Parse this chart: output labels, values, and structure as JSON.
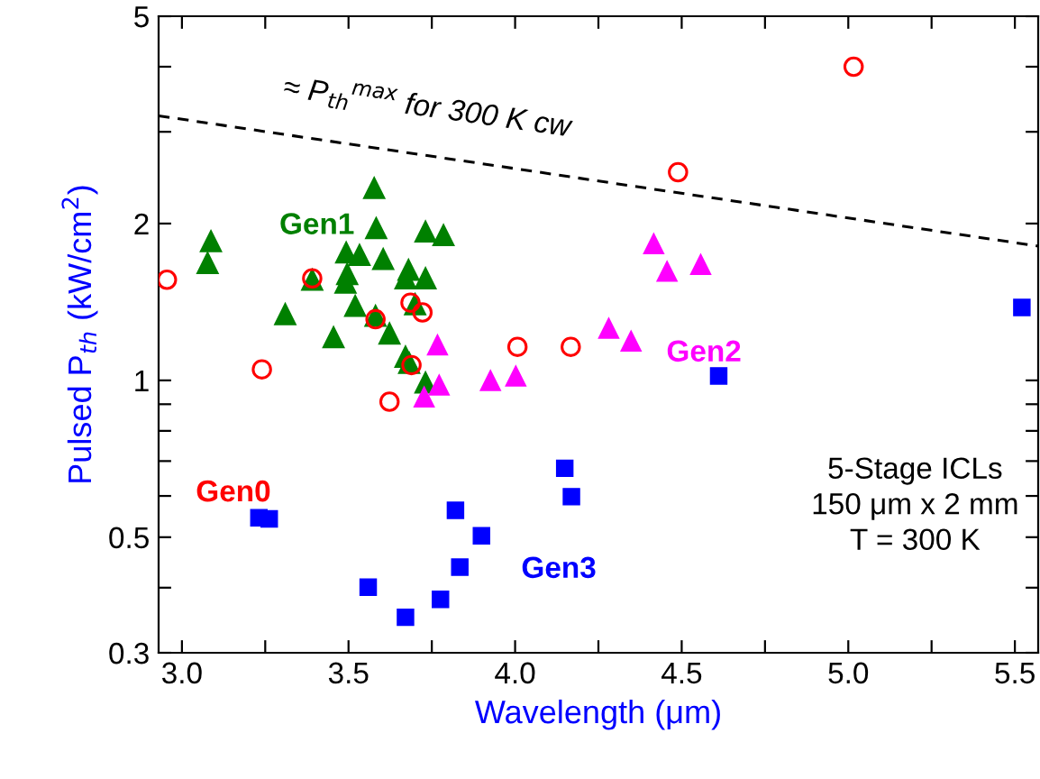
{
  "chart_data": {
    "type": "scatter",
    "xlabel": "Wavelength (μm)",
    "ylabel": "Pulsed P$_{th}$ (kW/cm$^{2}$)",
    "log": "y",
    "xlim": [
      2.93,
      5.57
    ],
    "ylim": [
      0.3,
      5
    ],
    "xticks": [
      {
        "value": 3,
        "label": "3.0"
      },
      {
        "value": 3.25,
        "label": null
      },
      {
        "value": 3.5,
        "label": "3.5"
      },
      {
        "value": 3.75,
        "label": null
      },
      {
        "value": 4,
        "label": "4.0"
      },
      {
        "value": 4.25,
        "label": null
      },
      {
        "value": 4.5,
        "label": "4.5"
      },
      {
        "value": 4.75,
        "label": null
      },
      {
        "value": 5,
        "label": "5.0"
      },
      {
        "value": 5.25,
        "label": null
      },
      {
        "value": 5.5,
        "label": "5.5"
      }
    ],
    "yticks": [
      0.3,
      {
        "value": 0.4,
        "label": null
      },
      0.5,
      {
        "value": 0.6,
        "label": null
      },
      {
        "value": 0.7,
        "label": null
      },
      {
        "value": 0.8,
        "label": null
      },
      {
        "value": 0.9,
        "label": null
      },
      1,
      2,
      {
        "value": 3,
        "label": null
      },
      {
        "value": 4,
        "label": null
      },
      5
    ],
    "grid": false,
    "legend": false,
    "series": [
      {
        "type": "line",
        "color": "#000000",
        "line_style": "dashed",
        "marker": "none",
        "x": [
          2.93,
          5.57
        ],
        "values": [
          3.22,
          1.81
        ]
      },
      {
        "name": "Gen0",
        "color": "#ff0000",
        "marker": "circle",
        "x": [
          2.955,
          3.391,
          3.581,
          3.686,
          3.722,
          3.24,
          3.689,
          3.623,
          4.007,
          4.167,
          5.016,
          4.489
        ],
        "values": [
          1.56,
          1.57,
          1.31,
          1.41,
          1.35,
          1.05,
          1.07,
          0.91,
          1.16,
          1.16,
          4.0,
          2.51
        ]
      },
      {
        "name": "Gen1",
        "color": "#008000",
        "marker": "triangle",
        "x": [
          3.577,
          3.087,
          3.077,
          3.583,
          3.731,
          3.785,
          3.493,
          3.533,
          3.604,
          3.68,
          3.731,
          3.671,
          3.496,
          3.491,
          3.391,
          3.52,
          3.581,
          3.31,
          3.7,
          3.623,
          3.455,
          3.671,
          3.682,
          3.731
        ],
        "values": [
          2.34,
          1.85,
          1.68,
          1.96,
          1.93,
          1.9,
          1.76,
          1.74,
          1.71,
          1.63,
          1.57,
          1.57,
          1.6,
          1.54,
          1.56,
          1.39,
          1.33,
          1.34,
          1.4,
          1.23,
          1.21,
          1.11,
          1.08,
          0.99
        ]
      },
      {
        "name": "Gen2",
        "color": "#ff00ff",
        "marker": "triangle",
        "x": [
          4.416,
          4.456,
          4.557,
          4.281,
          4.348,
          3.767,
          3.926,
          4.002,
          3.772,
          3.727
        ],
        "values": [
          1.83,
          1.62,
          1.67,
          1.26,
          1.19,
          1.17,
          1.0,
          1.02,
          0.98,
          0.93
        ]
      },
      {
        "name": "Gen3",
        "color": "#0000ff",
        "marker": "square",
        "x": [
          3.231,
          3.262,
          3.559,
          3.671,
          3.776,
          3.834,
          3.821,
          3.899,
          4.149,
          4.169,
          4.611,
          5.521
        ],
        "values": [
          0.545,
          0.542,
          0.401,
          0.351,
          0.38,
          0.438,
          0.563,
          0.503,
          0.678,
          0.598,
          1.02,
          1.38
        ]
      }
    ],
    "annotations": [
      "≈ P$_{th}$$^{max}$ for 300 K cw",
      "5-Stage ICLs\n150 μm x 2 mm\nT = 300 K"
    ]
  }
}
